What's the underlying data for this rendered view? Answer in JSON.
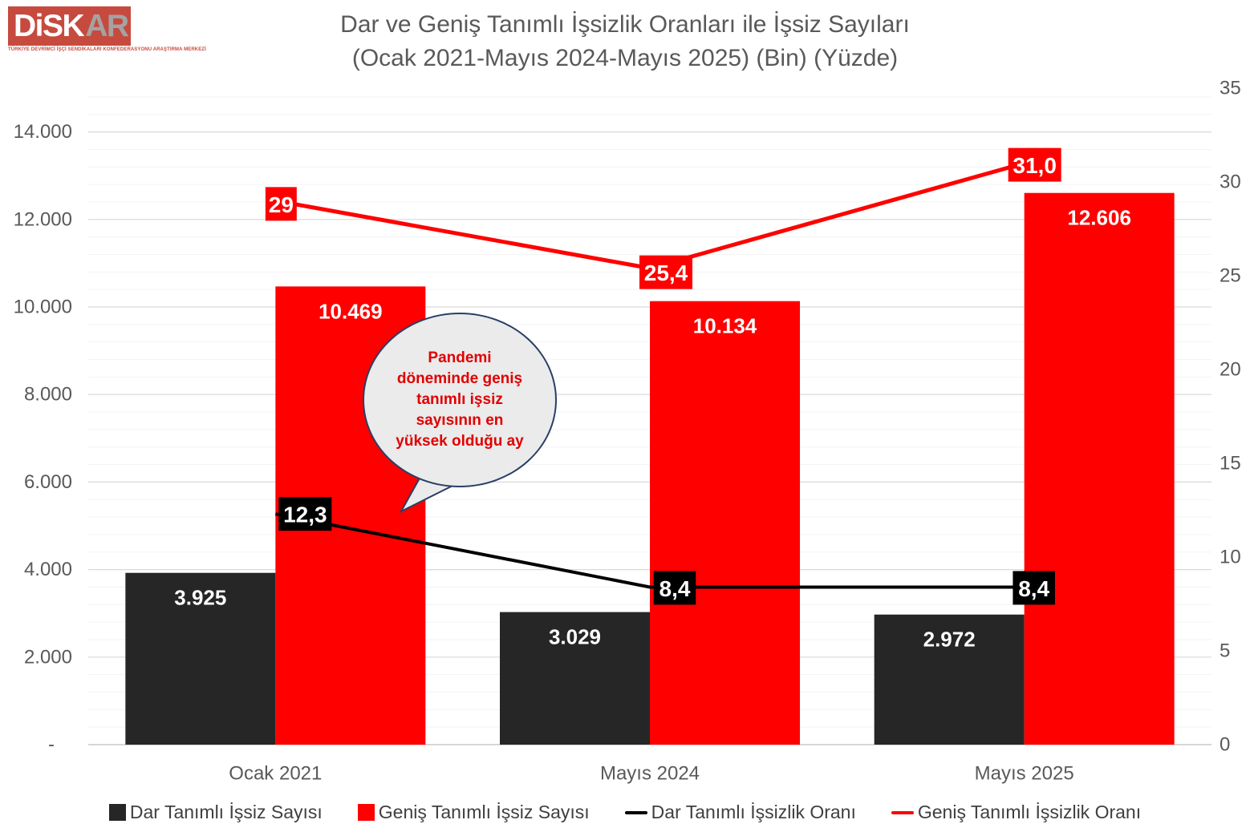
{
  "logo": {
    "brand_disk": "DiSK",
    "brand_ar": "AR",
    "tagline": "TÜRKİYE DEVRİMCİ İŞÇİ SENDİKALARI KONFEDERASYONU ARAŞTIRMA MERKEZİ",
    "box_color": "#c74a3f"
  },
  "title": {
    "line1": "Dar ve Geniş Tanımlı İşsizlik Oranları ile İşsiz Sayıları",
    "line2": "(Ocak 2021-Mayıs 2024-Mayıs 2025) (Bin) (Yüzde)"
  },
  "chart_data": {
    "type": "bar",
    "subtype": "grouped bars + two lines (secondary axis)",
    "categories": [
      "Ocak 2021",
      "Mayıs 2024",
      "Mayıs 2025"
    ],
    "bar_series": [
      {
        "name": "Dar Tanımlı İşsiz Sayısı",
        "color": "#262626",
        "values": [
          3925,
          3029,
          2972
        ],
        "labels": [
          "3.925",
          "3.029",
          "2.972"
        ]
      },
      {
        "name": "Geniş Tanımlı İşsiz Sayısı",
        "color": "#ff0000",
        "values": [
          10469,
          10134,
          12606
        ],
        "labels": [
          "10.469",
          "10.134",
          "12.606"
        ]
      }
    ],
    "line_series": [
      {
        "name": "Dar Tanımlı İşsizlik Oranı",
        "color": "#000000",
        "axis": "right",
        "values": [
          12.3,
          8.4,
          8.4
        ],
        "labels": [
          "12,3",
          "8,4",
          "8,4"
        ]
      },
      {
        "name": "Geniş Tanımlı İşsizlik Oranı",
        "color": "#ff0000",
        "axis": "right",
        "values": [
          29,
          25.4,
          31.0
        ],
        "labels": [
          "29",
          "25,4",
          "31,0"
        ]
      }
    ],
    "left_axis": {
      "max": 15000,
      "ticks": [
        {
          "v": 0,
          "label": "-"
        },
        {
          "v": 2000,
          "label": "2.000"
        },
        {
          "v": 4000,
          "label": "4.000"
        },
        {
          "v": 6000,
          "label": "6.000"
        },
        {
          "v": 8000,
          "label": "8.000"
        },
        {
          "v": 10000,
          "label": "10.000"
        },
        {
          "v": 12000,
          "label": "12.000"
        },
        {
          "v": 14000,
          "label": "14.000"
        }
      ]
    },
    "right_axis": {
      "max": 35,
      "ticks": [
        {
          "v": 0,
          "label": "0"
        },
        {
          "v": 5,
          "label": "5"
        },
        {
          "v": 10,
          "label": "10"
        },
        {
          "v": 15,
          "label": "15"
        },
        {
          "v": 20,
          "label": "20"
        },
        {
          "v": 25,
          "label": "25"
        },
        {
          "v": 30,
          "label": "30"
        },
        {
          "v": 35,
          "label": "35"
        }
      ]
    },
    "grid": {
      "major_step": 2000,
      "minor_step": 400,
      "major_color": "#d9d9d9",
      "minor_color": "#f3f3f3"
    },
    "callout": {
      "text": "Pandemi\ndöneminde geniş\ntanımlı işsiz\nsayısının en\nyüksek olduğu ay",
      "fill": "#ebebeb",
      "border_color": "#2a3f66",
      "text_color": "#e00000"
    },
    "legend": [
      {
        "label": "Dar Tanımlı İşsiz Sayısı",
        "swatch": "square",
        "color": "#262626"
      },
      {
        "label": "Geniş Tanımlı İşsiz Sayısı",
        "swatch": "square",
        "color": "#ff0000"
      },
      {
        "label": "Dar Tanımlı İşsizlik Oranı",
        "swatch": "line",
        "color": "#000000"
      },
      {
        "label": "Geniş Tanımlı İşsizlik Oranı",
        "swatch": "line",
        "color": "#ff0000"
      }
    ],
    "text_colors": {
      "axis": "#595959",
      "title": "#595959",
      "legend": "#3f3f3f"
    }
  }
}
